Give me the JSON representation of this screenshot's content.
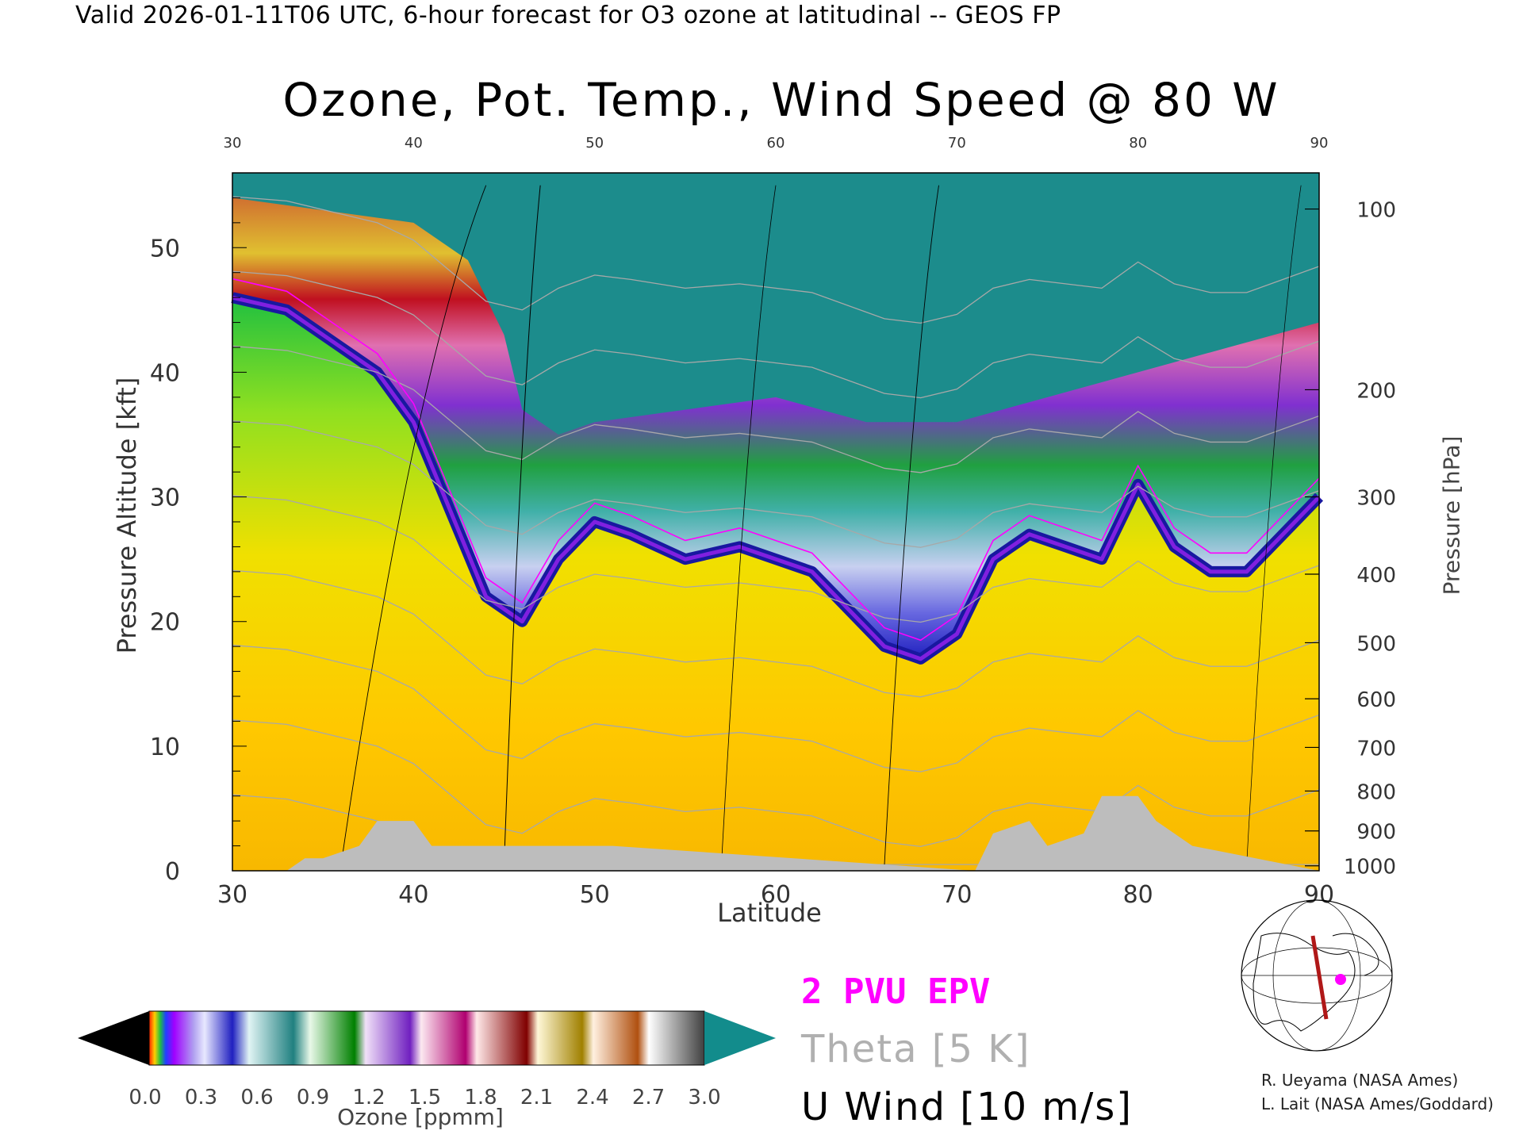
{
  "header": "Valid 2026-01-11T06 UTC, 6-hour forecast for O3 ozone at latitudinal -- GEOS FP",
  "chart_data": {
    "type": "heatmap",
    "title": "Ozone, Pot. Temp., Wind Speed @ 80 W",
    "xlabel": "Latitude",
    "ylabel": "Pressure Altitude [kft]",
    "ylabel_right": "Pressure [hPa]",
    "xlim": [
      30,
      90
    ],
    "ylim": [
      0,
      56
    ],
    "x_ticks": [
      30,
      40,
      50,
      60,
      70,
      80,
      90
    ],
    "y_ticks": [
      0,
      10,
      20,
      30,
      40,
      50
    ],
    "pressure_ticks": [
      "100",
      "200",
      "300",
      "400",
      "500",
      "600",
      "700",
      "800",
      "900",
      "1000"
    ],
    "pressure_tick_alt_kft": [
      53.1,
      38.6,
      30.0,
      23.8,
      18.3,
      13.8,
      9.9,
      6.4,
      3.2,
      0.4
    ],
    "grid": false,
    "tropopause_kft": {
      "lat": [
        30,
        33,
        36,
        38,
        40,
        42,
        44,
        46,
        48,
        50,
        52,
        55,
        58,
        60,
        62,
        64,
        66,
        68,
        70,
        72,
        74,
        76,
        78,
        80,
        82,
        84,
        86,
        88,
        90
      ],
      "alt": [
        46,
        45,
        42,
        40,
        36,
        29,
        22,
        20,
        25,
        28,
        27,
        25,
        26,
        25,
        24,
        21,
        18,
        17,
        19,
        25,
        27,
        26,
        25,
        31,
        26,
        24,
        24,
        27,
        30
      ]
    },
    "stratosphere_top_kft": {
      "lat": [
        30,
        35,
        40,
        43,
        45,
        46,
        48,
        50,
        55,
        60,
        65,
        70,
        75,
        80,
        85,
        90
      ],
      "alt": [
        54,
        53,
        52,
        49,
        43,
        37,
        35,
        36,
        37,
        38,
        36,
        36,
        38,
        40,
        42,
        44
      ]
    },
    "surface_kft": {
      "lat": [
        30,
        33,
        34,
        35,
        37,
        38,
        40,
        41,
        46,
        47,
        51,
        71,
        72,
        74,
        75,
        77,
        78,
        80,
        81,
        83,
        90
      ],
      "alt": [
        0,
        0,
        1,
        1,
        2,
        4,
        4,
        2,
        2,
        2,
        2,
        0,
        3,
        4,
        2,
        3,
        6,
        6,
        4,
        2,
        0
      ]
    },
    "ozone_colorbar": {
      "label": "Ozone [ppmm]",
      "ticks": [
        "0.0",
        "0.3",
        "0.6",
        "0.9",
        "1.2",
        "1.5",
        "1.8",
        "2.1",
        "2.4",
        "2.7",
        "3.0"
      ]
    },
    "legend": [
      "2 PVU EPV",
      "Theta [5 K]",
      "U Wind [10 m/s]"
    ],
    "legend_colors": {
      "epv": "#ff00ff",
      "theta": "#b0b0b0",
      "wind": "#000000"
    }
  },
  "credits": [
    "R. Ueyama (NASA Ames)",
    "L. Lait (NASA Ames/Goddard)"
  ]
}
